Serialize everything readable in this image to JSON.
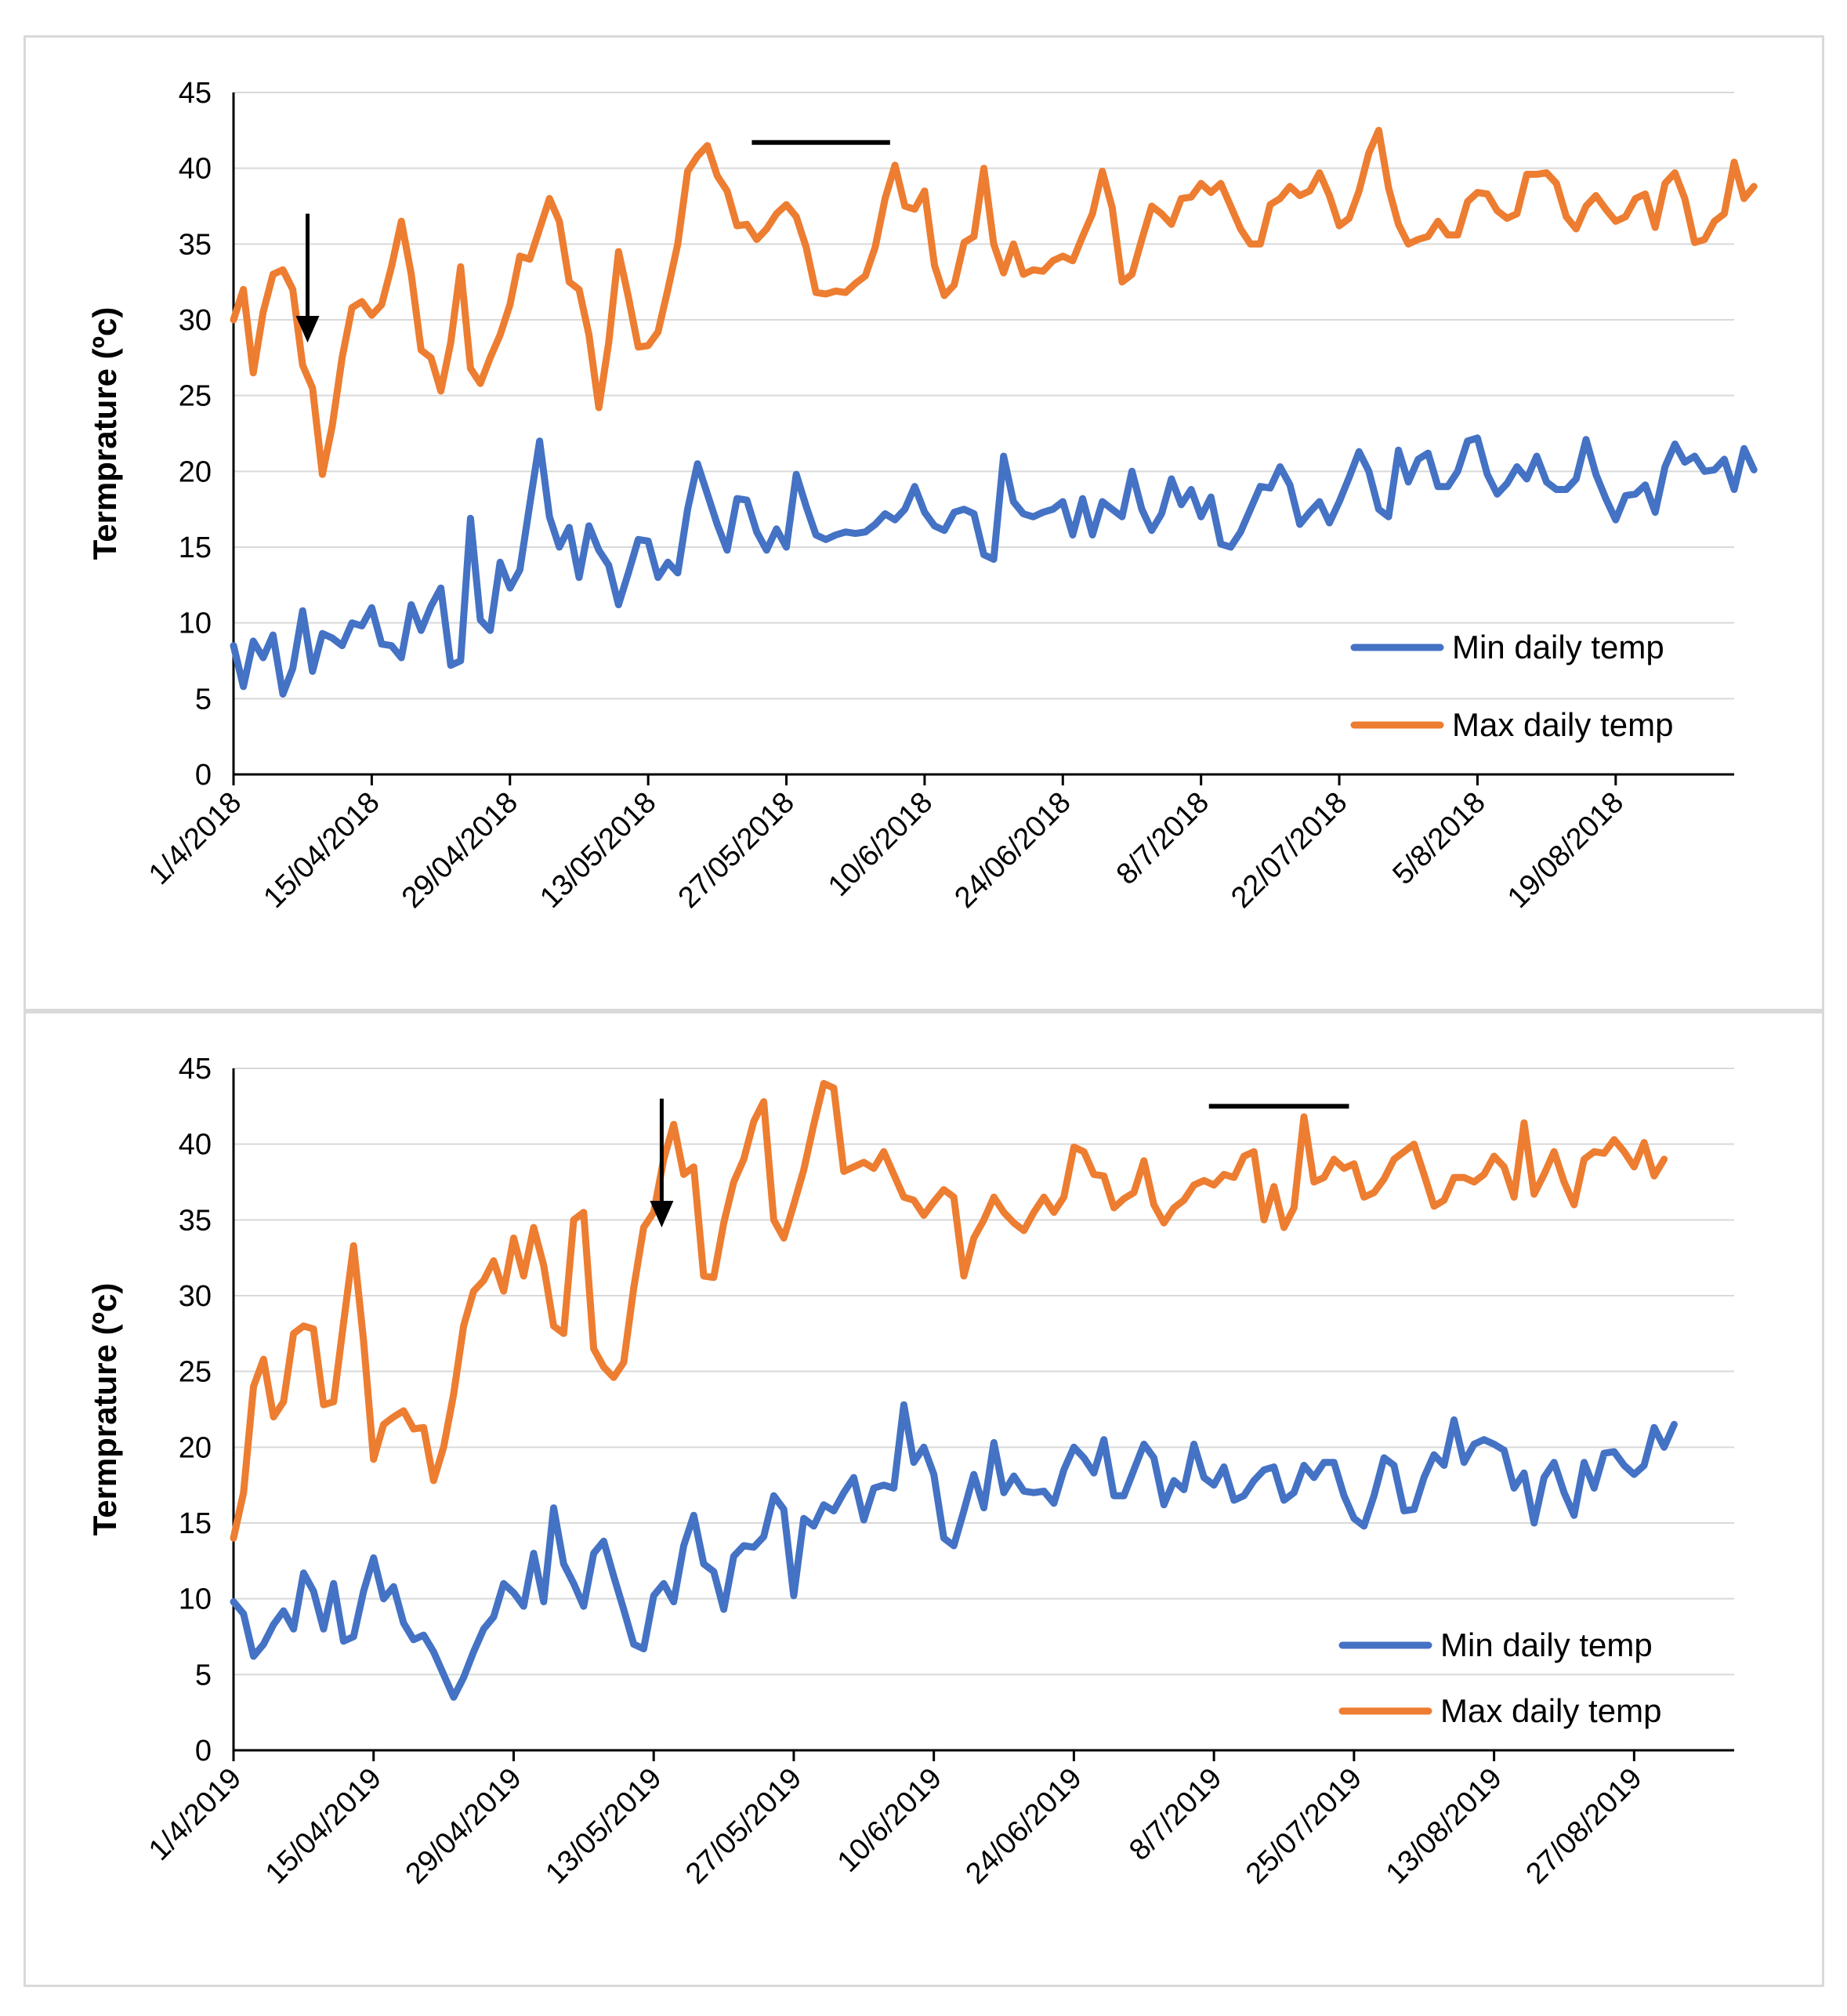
{
  "chart_data": [
    {
      "type": "line",
      "ylabel": "Termprature (ºc)",
      "ylim": [
        0,
        45
      ],
      "yticks": [
        "0",
        "5",
        "10",
        "15",
        "20",
        "25",
        "30",
        "35",
        "40",
        "45"
      ],
      "x_range_days": [
        0,
        152
      ],
      "xticks": [
        {
          "label": "1/4/2018",
          "day": 0
        },
        {
          "label": "15/04/2018",
          "day": 14
        },
        {
          "label": "29/04/2018",
          "day": 28
        },
        {
          "label": "13/05/2018",
          "day": 42
        },
        {
          "label": "27/05/2018",
          "day": 56
        },
        {
          "label": "10/6/2018",
          "day": 70
        },
        {
          "label": "24/06/2018",
          "day": 84
        },
        {
          "label": "8/7/2018",
          "day": 98
        },
        {
          "label": "22/07/2018",
          "day": 112
        },
        {
          "label": "5/8/2018",
          "day": 126
        },
        {
          "label": "19/08/2018",
          "day": 140
        }
      ],
      "legend": {
        "position": "bottom-right",
        "entries": [
          "Min daily temp",
          "Max daily temp"
        ]
      },
      "colors": {
        "min": "#4472C4",
        "max": "#ED7D31"
      },
      "annotations": {
        "arrow_day": 7.5,
        "arrow_top_value": 37,
        "arrow_tip_value": 28.5,
        "bar_start_day": 52.5,
        "bar_end_day": 66.5,
        "bar_value": 41.7
      },
      "series": [
        {
          "name": "Min daily temp",
          "values": [
            8.5,
            5.8,
            8.8,
            7.7,
            9.2,
            5.3,
            7.0,
            10.8,
            6.8,
            9.3,
            9.0,
            8.5,
            10.0,
            9.8,
            11.0,
            8.6,
            8.5,
            7.7,
            11.2,
            9.5,
            11.1,
            12.3,
            7.2,
            7.5,
            16.9,
            10.2,
            9.5,
            14.0,
            12.3,
            13.5,
            17.8,
            22.0,
            17.0,
            15.0,
            16.3,
            13.0,
            16.4,
            14.8,
            13.8,
            11.2,
            13.3,
            15.5,
            15.4,
            13.0,
            14.0,
            13.3,
            17.5,
            20.5,
            18.5,
            16.5,
            14.8,
            18.2,
            18.1,
            16.0,
            14.8,
            16.2,
            15.0,
            19.8,
            17.7,
            15.8,
            15.5,
            15.8,
            16.0,
            15.9,
            16.0,
            16.5,
            17.2,
            16.8,
            17.5,
            19.0,
            17.3,
            16.4,
            16.1,
            17.3,
            17.5,
            17.2,
            14.5,
            14.2,
            21.0,
            18.0,
            17.2,
            17.0,
            17.3,
            17.5,
            18.0,
            15.8,
            18.2,
            15.8,
            18.0,
            17.5,
            17.0,
            20.0,
            17.5,
            16.1,
            17.2,
            19.5,
            17.8,
            18.8,
            17.0,
            18.3,
            15.2,
            15.0,
            16.0,
            17.5,
            19.0,
            18.9,
            20.3,
            19.1,
            16.5,
            17.3,
            18.0,
            16.6,
            18.0,
            19.6,
            21.3,
            20.0,
            17.5,
            17.0,
            21.4,
            19.3,
            20.8,
            21.2,
            19.0,
            19.0,
            20.0,
            22.0,
            22.2,
            19.8,
            18.5,
            19.2,
            20.3,
            19.5,
            21.0,
            19.3,
            18.8,
            18.8,
            19.5,
            22.1,
            19.8,
            18.2,
            16.8,
            18.4,
            18.5,
            19.1,
            17.3,
            20.3,
            21.8,
            20.6,
            21.0,
            20.0,
            20.1,
            20.8,
            18.8,
            21.5,
            20.1
          ]
        },
        {
          "name": "Max daily temp",
          "values": [
            30.0,
            32.0,
            26.5,
            30.5,
            33.0,
            33.3,
            32.0,
            27.0,
            25.5,
            19.8,
            23.0,
            27.5,
            30.8,
            31.2,
            30.3,
            31.0,
            33.5,
            36.5,
            33.0,
            28.0,
            27.5,
            25.3,
            28.5,
            33.5,
            26.8,
            25.8,
            27.5,
            29.0,
            31.0,
            34.2,
            34.0,
            36.0,
            38.0,
            36.5,
            32.5,
            32.0,
            29.0,
            24.2,
            28.5,
            34.5,
            31.5,
            28.2,
            28.3,
            29.2,
            32.0,
            35.0,
            39.8,
            40.8,
            41.5,
            39.5,
            38.5,
            36.2,
            36.3,
            35.3,
            36.0,
            37.0,
            37.6,
            36.8,
            34.8,
            31.8,
            31.7,
            31.9,
            31.8,
            32.4,
            32.9,
            34.8,
            38.0,
            40.2,
            37.5,
            37.3,
            38.5,
            33.6,
            31.6,
            32.3,
            35.1,
            35.5,
            40.0,
            35.0,
            33.1,
            35.0,
            33.0,
            33.3,
            33.2,
            33.9,
            34.2,
            33.9,
            35.5,
            37.0,
            39.8,
            37.4,
            32.5,
            33.0,
            35.3,
            37.5,
            37.0,
            36.3,
            38.0,
            38.1,
            39.0,
            38.4,
            39.0,
            37.5,
            36.0,
            35.0,
            35.0,
            37.6,
            38.0,
            38.8,
            38.2,
            38.5,
            39.7,
            38.2,
            36.2,
            36.7,
            38.5,
            41.0,
            42.5,
            38.7,
            36.3,
            35.0,
            35.3,
            35.5,
            36.5,
            35.6,
            35.6,
            37.8,
            38.4,
            38.3,
            37.2,
            36.7,
            37.0,
            39.6,
            39.6,
            39.7,
            39.0,
            36.8,
            36.0,
            37.5,
            38.2,
            37.3,
            36.5,
            36.8,
            38.0,
            38.3,
            36.1,
            39.0,
            39.7,
            38.0,
            35.1,
            35.3,
            36.5,
            37.0,
            40.4,
            38.0,
            38.8
          ]
        }
      ]
    },
    {
      "type": "line",
      "ylabel": "Termprature (ºc)",
      "ylim": [
        0,
        45
      ],
      "yticks": [
        "0",
        "5",
        "10",
        "15",
        "20",
        "25",
        "30",
        "35",
        "40",
        "45"
      ],
      "x_range_days": [
        0,
        150
      ],
      "xticks": [
        {
          "label": "1/4/2019",
          "day": 0
        },
        {
          "label": "15/04/2019",
          "day": 14
        },
        {
          "label": "29/04/2019",
          "day": 28
        },
        {
          "label": "13/05/2019",
          "day": 42
        },
        {
          "label": "27/05/2019",
          "day": 56
        },
        {
          "label": "10/6/2019",
          "day": 70
        },
        {
          "label": "24/06/2019",
          "day": 84
        },
        {
          "label": "8/7/2019",
          "day": 98
        },
        {
          "label": "25/07/2019",
          "day": 112
        },
        {
          "label": "13/08/2019",
          "day": 126
        },
        {
          "label": "27/08/2019",
          "day": 140
        }
      ],
      "legend": {
        "position": "bottom-right",
        "entries": [
          "Min daily temp",
          "Max daily temp"
        ]
      },
      "colors": {
        "min": "#4472C4",
        "max": "#ED7D31"
      },
      "annotations": {
        "arrow_day": 42.8,
        "arrow_top_value": 43,
        "arrow_tip_value": 34.5,
        "bar_start_day": 97.5,
        "bar_end_day": 111.5,
        "bar_value": 42.5
      },
      "series": [
        {
          "name": "Min daily temp",
          "values": [
            9.8,
            9.0,
            6.2,
            7.0,
            8.3,
            9.2,
            8.0,
            11.7,
            10.5,
            8.0,
            11.0,
            7.2,
            7.5,
            10.5,
            12.7,
            10.0,
            10.8,
            8.4,
            7.3,
            7.6,
            6.5,
            5.0,
            3.5,
            4.8,
            6.5,
            8.0,
            8.8,
            11.0,
            10.4,
            9.5,
            13.0,
            9.8,
            16.0,
            12.3,
            11.0,
            9.5,
            13.0,
            13.8,
            11.5,
            9.3,
            7.0,
            6.7,
            10.2,
            11.0,
            9.8,
            13.5,
            15.5,
            12.3,
            11.8,
            9.3,
            12.8,
            13.5,
            13.4,
            14.1,
            16.8,
            15.9,
            10.2,
            15.3,
            14.8,
            16.2,
            15.8,
            17.0,
            18.0,
            15.2,
            17.3,
            17.5,
            17.3,
            22.8,
            19.0,
            20.0,
            18.2,
            14.0,
            13.5,
            15.8,
            18.2,
            16.0,
            20.3,
            17.0,
            18.1,
            17.1,
            17.0,
            17.1,
            16.3,
            18.5,
            20.0,
            19.3,
            18.3,
            20.5,
            16.8,
            16.8,
            18.5,
            20.2,
            19.3,
            16.2,
            17.8,
            17.2,
            20.2,
            18.0,
            17.5,
            18.7,
            16.5,
            16.8,
            17.8,
            18.5,
            18.7,
            16.5,
            17.0,
            18.8,
            18.0,
            19.0,
            19.0,
            16.8,
            15.3,
            14.8,
            16.8,
            19.3,
            18.8,
            15.8,
            15.9,
            18.0,
            19.5,
            18.8,
            21.8,
            19.0,
            20.2,
            20.5,
            20.2,
            19.8,
            17.3,
            18.3,
            15.0,
            18.0,
            19.0,
            17.0,
            15.5,
            19.0,
            17.3,
            19.6,
            19.7,
            18.8,
            18.2,
            18.8,
            21.3,
            20.0,
            21.5
          ]
        },
        {
          "name": "Max daily temp",
          "values": [
            14.0,
            17.0,
            24.0,
            25.8,
            22.0,
            23.0,
            27.5,
            28.0,
            27.8,
            22.8,
            23.0,
            28.2,
            33.3,
            27.0,
            19.2,
            21.5,
            22.0,
            22.4,
            21.2,
            21.3,
            17.8,
            20.0,
            23.5,
            28.0,
            30.3,
            31.0,
            32.3,
            30.3,
            33.8,
            31.3,
            34.5,
            32.0,
            28.0,
            27.5,
            35.0,
            35.5,
            26.5,
            25.3,
            24.6,
            25.6,
            30.5,
            34.5,
            35.5,
            39.0,
            41.3,
            38.0,
            38.5,
            31.3,
            31.2,
            34.8,
            37.5,
            39.0,
            41.5,
            42.8,
            35.0,
            33.8,
            36.0,
            38.3,
            41.3,
            44.0,
            43.7,
            38.2,
            38.5,
            38.8,
            38.4,
            39.5,
            38.0,
            36.5,
            36.3,
            35.3,
            36.2,
            37.0,
            36.5,
            31.3,
            33.8,
            35.0,
            36.5,
            35.5,
            34.8,
            34.3,
            35.5,
            36.5,
            35.5,
            36.5,
            39.8,
            39.5,
            38.0,
            37.9,
            35.8,
            36.4,
            36.8,
            38.9,
            36.0,
            34.8,
            35.8,
            36.3,
            37.3,
            37.6,
            37.3,
            38.0,
            37.8,
            39.2,
            39.5,
            35.0,
            37.2,
            34.5,
            35.8,
            41.8,
            37.5,
            37.8,
            39.0,
            38.4,
            38.7,
            36.5,
            36.8,
            37.7,
            39.0,
            39.5,
            40.0,
            38.0,
            35.9,
            36.3,
            37.8,
            37.8,
            37.5,
            38.0,
            39.2,
            38.5,
            36.5,
            41.4,
            36.7,
            38.0,
            39.5,
            37.5,
            36.0,
            39.0,
            39.5,
            39.4,
            40.3,
            39.5,
            38.5,
            40.1,
            37.9,
            39.0
          ]
        }
      ]
    }
  ]
}
